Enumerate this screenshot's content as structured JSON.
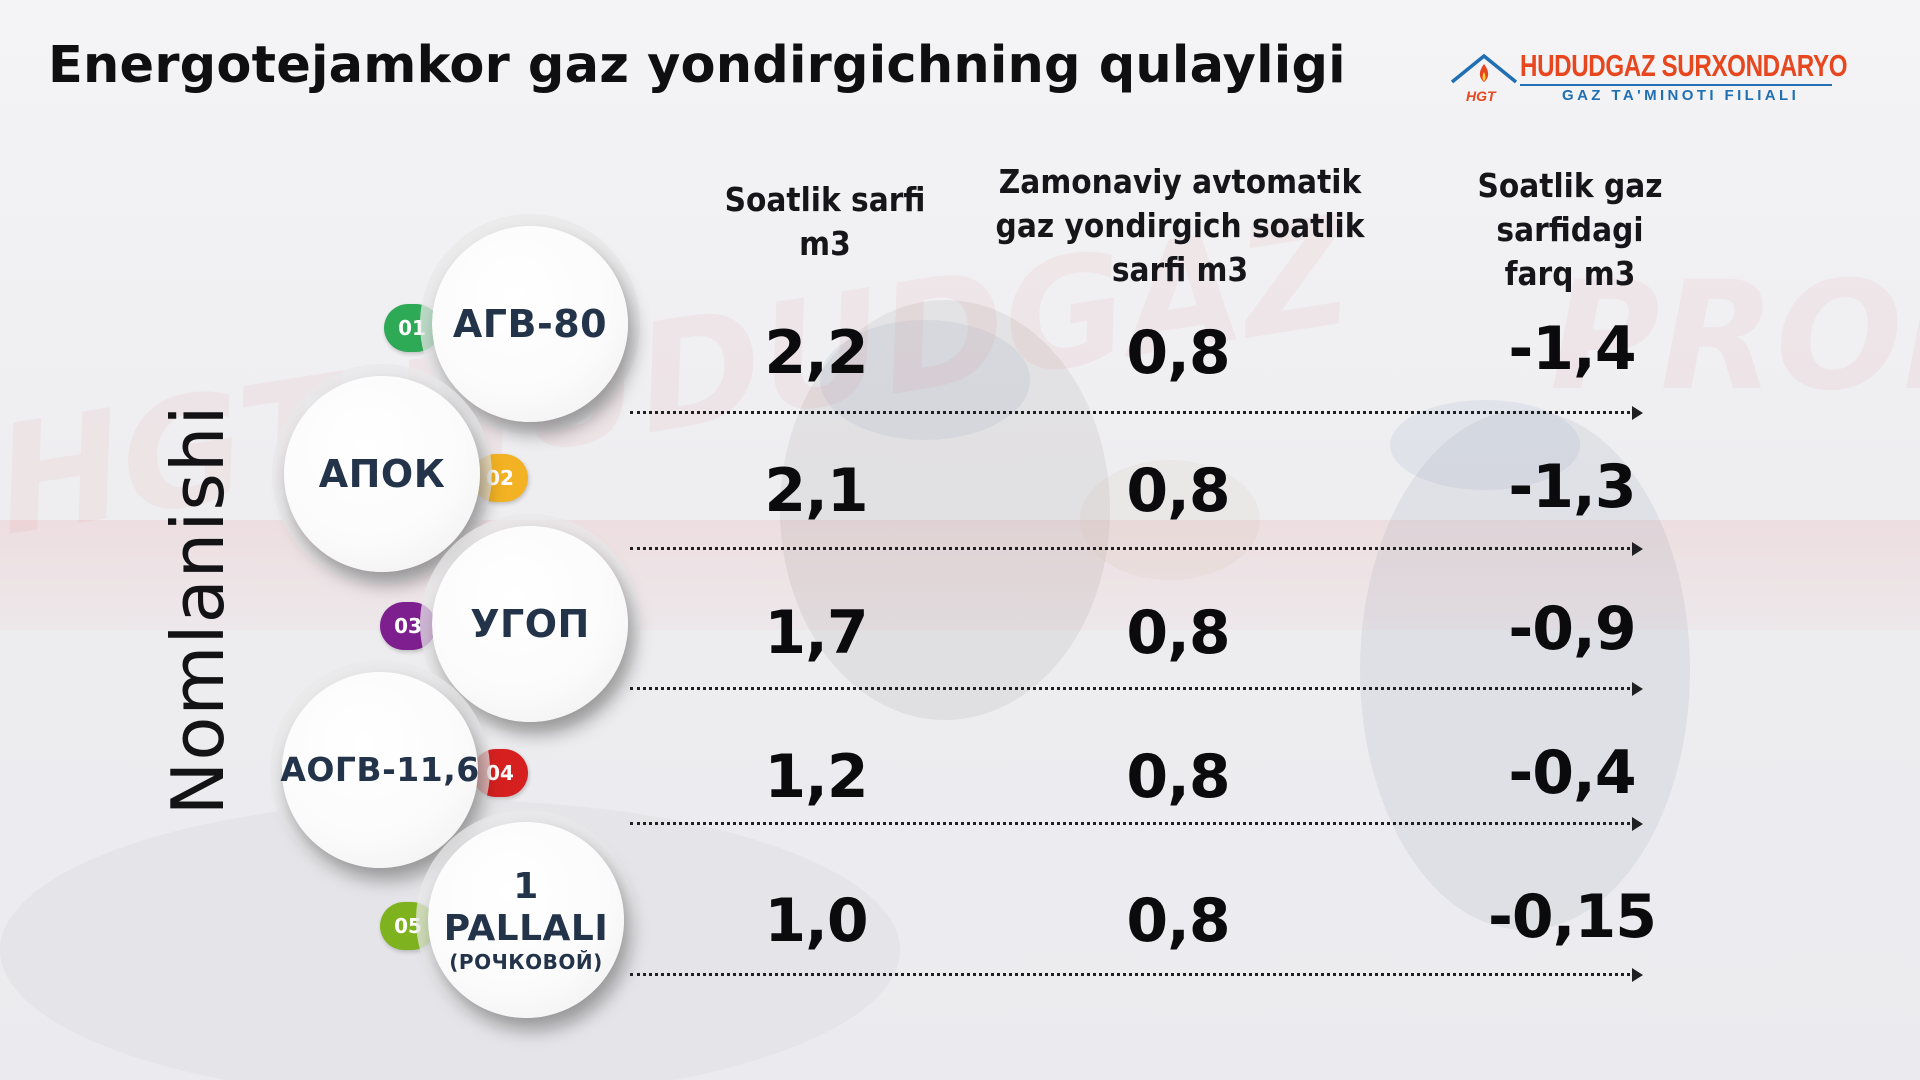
{
  "title": "Energotejamkor gaz yondirgichning qulayligi",
  "logo": {
    "name": "HUDUDGAZ SURXONDARYO",
    "subtitle": "GAZ TA'MINOTI FILIALI",
    "mark": "HGT",
    "colors": {
      "brand": "#e7471f",
      "secondary": "#1f6fb2"
    }
  },
  "side_label": "Nomlanishi",
  "columns": [
    {
      "line1": "Soatlik sarfi m3",
      "line2": "",
      "line3": ""
    },
    {
      "line1": "Zamonaviy avtomatik",
      "line2": "gaz yondirgich soatlik",
      "line3": "sarfi m3"
    },
    {
      "line1": "Soatlik gaz sarfidagi",
      "line2": "farq m3",
      "line3": ""
    }
  ],
  "rows": [
    {
      "badge": "01",
      "badge_color": "#2eaa57",
      "name": "АГВ-80",
      "name_sub": "",
      "hourly": "2,2",
      "modern": "0,8",
      "diff": "-1,4"
    },
    {
      "badge": "02",
      "badge_color": "#f2b223",
      "name": "АПОК",
      "name_sub": "",
      "hourly": "2,1",
      "modern": "0,8",
      "diff": "-1,3"
    },
    {
      "badge": "03",
      "badge_color": "#7d1f8e",
      "name": "УГОП",
      "name_sub": "",
      "hourly": "1,7",
      "modern": "0,8",
      "diff": "-0,9"
    },
    {
      "badge": "04",
      "badge_color": "#d62020",
      "name": "АОГВ-11,6",
      "name_sub": "",
      "hourly": "1,2",
      "modern": "0,8",
      "diff": "-0,4"
    },
    {
      "badge": "05",
      "badge_color": "#7fb21f",
      "name": "1 PALLALI",
      "name_sub": "(РОЧКОВОЙ)",
      "hourly": "1,0",
      "modern": "0,8",
      "diff": "-0,15"
    }
  ]
}
